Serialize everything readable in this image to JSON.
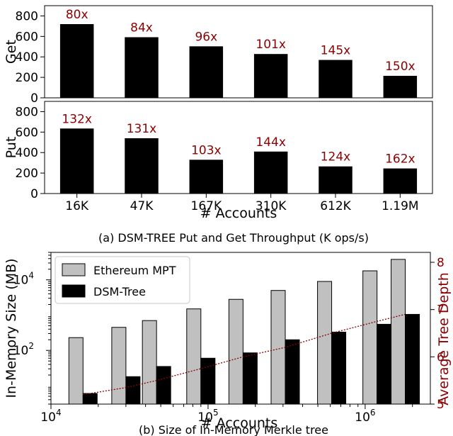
{
  "chart_data": [
    {
      "type": "bar",
      "ylabel": "Get",
      "ylim": [
        0,
        900
      ],
      "yticks": [
        "0",
        "200",
        "400",
        "600",
        "800"
      ],
      "categories": [
        "16K",
        "47K",
        "167K",
        "310K",
        "612K",
        "1.19M"
      ],
      "values": [
        720,
        592,
        503,
        428,
        370,
        215
      ],
      "annotations": [
        "80x",
        "84x",
        "96x",
        "101x",
        "145x",
        "150x"
      ],
      "colors": {
        "bar": "#000000",
        "annotation": "#8b0000"
      }
    },
    {
      "type": "bar",
      "ylabel": "Put",
      "ylim": [
        0,
        900
      ],
      "yticks": [
        "0",
        "200",
        "400",
        "600",
        "800"
      ],
      "categories": [
        "16K",
        "47K",
        "167K",
        "310K",
        "612K",
        "1.19M"
      ],
      "values": [
        635,
        540,
        330,
        410,
        265,
        245
      ],
      "annotations": [
        "132x",
        "131x",
        "103x",
        "144x",
        "124x",
        "162x"
      ],
      "xlabel": "# Accounts",
      "colors": {
        "bar": "#000000",
        "annotation": "#8b0000"
      }
    },
    {
      "type": "bar",
      "log_x": true,
      "log_y": true,
      "xlabel": "# Accounts",
      "ylabel": "In-Memory Size (MB)",
      "xlim": [
        10000,
        2600000
      ],
      "ylim": [
        3,
        60000
      ],
      "xticks": [
        {
          "value": 10000,
          "base": "10",
          "exp": "4"
        },
        {
          "value": 100000,
          "base": "10",
          "exp": "5"
        },
        {
          "value": 1000000,
          "base": "10",
          "exp": "6"
        }
      ],
      "yticks": [
        {
          "value": 100,
          "base": "10",
          "exp": "2"
        },
        {
          "value": 10000,
          "base": "10",
          "exp": "4"
        }
      ],
      "x": [
        16000,
        30000,
        47000,
        90000,
        167000,
        310000,
        612000,
        1190000,
        1800000
      ],
      "series": [
        {
          "name": "Ethereum MPT",
          "color": "#c0c0c0",
          "values": [
            230,
            450,
            700,
            1500,
            2800,
            5000,
            9000,
            18000,
            38000
          ]
        },
        {
          "name": "DSM-Tree",
          "color": "#000000",
          "values": [
            6,
            18,
            35,
            60,
            85,
            200,
            330,
            550,
            1050
          ]
        }
      ],
      "secondary_axis": {
        "label": "Average Tree Depth",
        "color": "#8b0000",
        "ylim": [
          5,
          8
        ],
        "yticks": [
          "5",
          "6",
          "7",
          "8"
        ],
        "line": {
          "style": "dotted",
          "x": [
            16000,
            30000,
            47000,
            90000,
            167000,
            310000,
            612000,
            1190000,
            1800000
          ],
          "values": [
            5.2,
            5.35,
            5.5,
            5.75,
            6.0,
            6.2,
            6.5,
            6.75,
            6.9
          ]
        }
      },
      "legend": "top-left"
    }
  ],
  "captions": {
    "a": "(a) DSM-TREE Put and Get Throughput (K ops/s)",
    "b": "(b) Size of In-Memory Merkle tree"
  }
}
